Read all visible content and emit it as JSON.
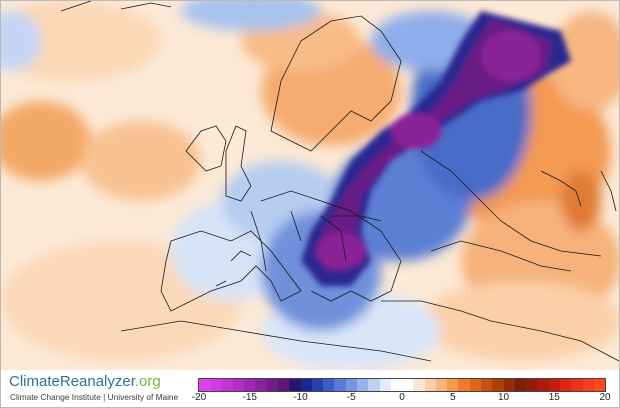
{
  "branding": {
    "logo_part1": "ClimateReanalyzer",
    "logo_part2": ".org",
    "subtitle": "Climate Change Institute | University of Maine"
  },
  "legend": {
    "ticks": [
      "-20",
      "-15",
      "-10",
      "-5",
      "0",
      "5",
      "10",
      "15",
      "20"
    ],
    "range": [
      -20,
      20
    ],
    "colors": [
      "#e040f0",
      "#d23ae6",
      "#c234d8",
      "#b02ec8",
      "#9c28b4",
      "#88229e",
      "#741c8a",
      "#601878",
      "#2a1670",
      "#1c2890",
      "#2840b0",
      "#3e5cc8",
      "#5a7ad6",
      "#7896e0",
      "#98b2ea",
      "#bcd0f2",
      "#e2ecfa",
      "#ffffff",
      "#ffffff",
      "#fde6cf",
      "#fbcfa6",
      "#f8b47a",
      "#f49850",
      "#ee7c2c",
      "#e0641a",
      "#c85010",
      "#ae3e0a",
      "#942e06",
      "#7c2004",
      "#941a0a",
      "#ae1a0e",
      "#c81c10",
      "#de2414",
      "#ee3018",
      "#f83e1c",
      "#ff4a20"
    ],
    "palette": {
      "cold_extreme": "#8e1fa0",
      "cold": "#2a3ea8",
      "cool": "#aac4ee",
      "warm": "#f6a86a",
      "hot": "#d8621c",
      "land_border": "#1a1a1a"
    }
  }
}
